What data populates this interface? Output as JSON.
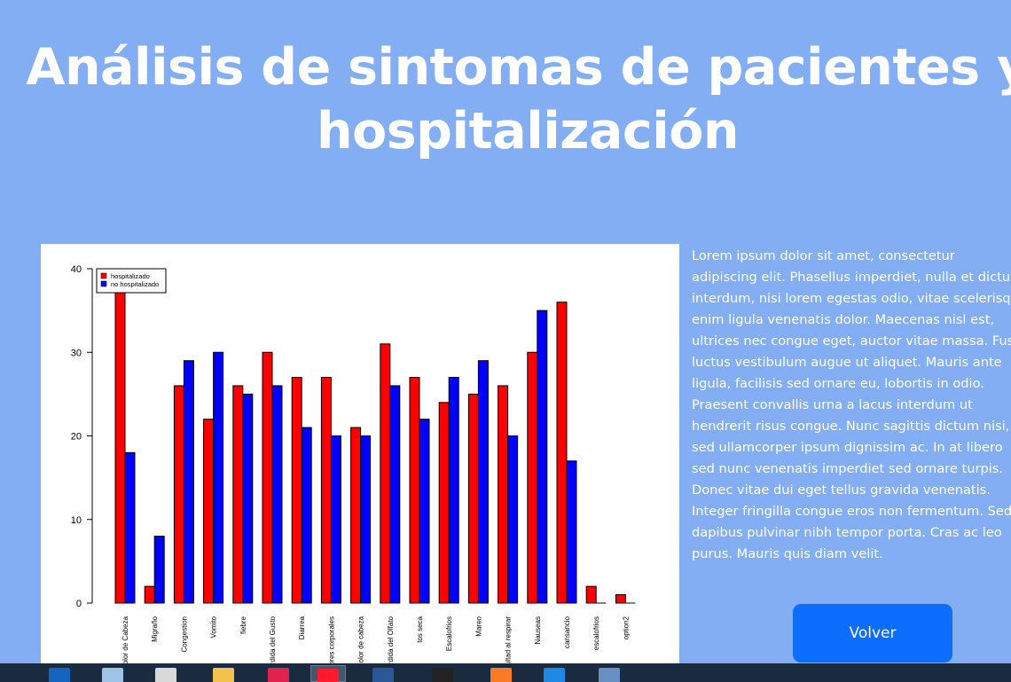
{
  "page": {
    "title_line1": "Análisis de sintomas de pacientes y",
    "title_line2": "hospitalización"
  },
  "lorem_lines": [
    "Lorem ipsum dolor sit amet, consectetur",
    "adipiscing elit. Phasellus imperdiet, nulla et dictum",
    "interdum, nisi lorem egestas odio, vitae scelerisque",
    "enim ligula venenatis dolor. Maecenas nisl est,",
    "ultrices nec congue eget, auctor vitae massa. Fusce",
    "luctus vestibulum augue ut aliquet. Mauris ante",
    "ligula, facilisis sed ornare eu, lobortis in odio.",
    "Praesent convallis urna a lacus interdum ut",
    "hendrerit risus congue. Nunc sagittis dictum nisi,",
    "sed ullamcorper ipsum dignissim ac. In at libero",
    "sed nunc venenatis imperdiet sed ornare turpis.",
    "Donec vitae dui eget tellus gravida venenatis.",
    "Integer fringilla congue eros non fermentum. Sed",
    "dapibus pulvinar nibh tempor porta. Cras ac leo",
    "purus. Mauris quis diam velit."
  ],
  "button": {
    "volver": "Volver"
  },
  "colors": {
    "background": "#84aef3",
    "hospitalizado": "#ff0000",
    "no_hospitalizado": "#0000ff",
    "button": "#0d6efd"
  },
  "chart_data": {
    "type": "bar",
    "title": "",
    "xlabel": "",
    "ylabel": "",
    "ylim": [
      0,
      40
    ],
    "yticks": [
      0,
      10,
      20,
      30,
      40
    ],
    "legend_position": "top-left",
    "categories": [
      "Dolor de Cabeza",
      "Migraño",
      "Congestion",
      "Vomito",
      "fiebre",
      "Perdida del Gusto",
      "Diarrea",
      "Dolores corporales",
      "Dolor de cabeza",
      "Perdida del Olfato",
      "tos seca",
      "Escalofrios",
      "Mareo",
      "Dificultad al respirar",
      "Nauseas",
      "cansancio",
      "escalofrios",
      "option2"
    ],
    "series": [
      {
        "name": "hospitalizado",
        "color": "#ff0000",
        "values": [
          40,
          2,
          26,
          22,
          26,
          30,
          27,
          27,
          21,
          31,
          27,
          24,
          25,
          26,
          30,
          36,
          2,
          1
        ]
      },
      {
        "name": "no hospitalizado",
        "color": "#0000ff",
        "values": [
          18,
          8,
          29,
          30,
          25,
          26,
          21,
          20,
          20,
          26,
          22,
          27,
          29,
          20,
          35,
          17,
          0,
          0
        ]
      }
    ]
  },
  "taskbar": {
    "items": [
      {
        "icon": "mail-icon",
        "color": "#1565c0"
      },
      {
        "icon": "calculator-icon",
        "color": "#9fc3e6"
      },
      {
        "icon": "paint-icon",
        "color": "#d9d9d9"
      },
      {
        "icon": "folder-icon",
        "color": "#f2c14e"
      },
      {
        "icon": "opera-gx-icon",
        "color": "#e0234e"
      },
      {
        "icon": "opera-icon",
        "color": "#ff1b2d"
      },
      {
        "icon": "word-icon",
        "color": "#2b5797"
      },
      {
        "icon": "terminal-icon",
        "color": "#222222"
      },
      {
        "icon": "xampp-icon",
        "color": "#fb7a24"
      },
      {
        "icon": "vscode-icon",
        "color": "#1e88e5"
      },
      {
        "icon": "r-icon",
        "color": "#6a8fc2"
      }
    ]
  }
}
